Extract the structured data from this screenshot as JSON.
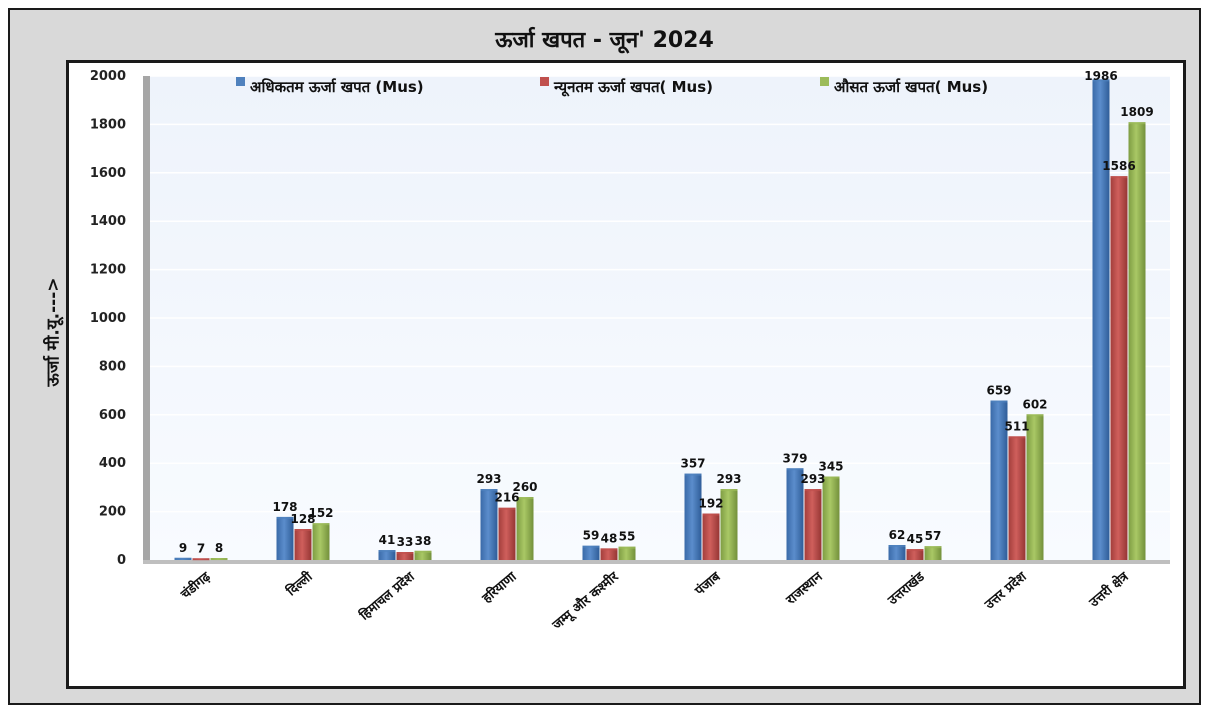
{
  "chart_data": {
    "type": "bar",
    "title": "ऊर्जा खपत - जून' 2024",
    "ylabel": "ऊर्जा मी.यू.--->",
    "xlabel": "",
    "ylim": [
      0,
      2000
    ],
    "yticks": [
      0,
      200,
      400,
      600,
      800,
      1000,
      1200,
      1400,
      1600,
      1800,
      2000
    ],
    "grid": true,
    "legend_position": "top",
    "categories": [
      "चंडीगढ़",
      "दिल्ली",
      "हिमाचल प्रदेश",
      "हरियाणा",
      "जम्मू और कश्मीर",
      "पंजाब",
      "राजस्थान",
      "उत्तराखंड",
      "उत्तर प्रदेश",
      "उत्तरी क्षेत्र"
    ],
    "series": [
      {
        "name": "अधिकतम ऊर्जा खपत (Mus)",
        "color": "#4f81bd",
        "values": [
          9,
          178,
          41,
          293,
          59,
          357,
          379,
          62,
          659,
          1986
        ]
      },
      {
        "name": "न्यूनतम ऊर्जा खपत( Mus)",
        "color": "#c0504d",
        "values": [
          7,
          128,
          33,
          216,
          48,
          192,
          293,
          45,
          511,
          1586
        ]
      },
      {
        "name": "औसत ऊर्जा खपत( Mus)",
        "color": "#9bbb59",
        "values": [
          8,
          152,
          38,
          260,
          55,
          293,
          345,
          57,
          602,
          1809
        ]
      }
    ]
  }
}
